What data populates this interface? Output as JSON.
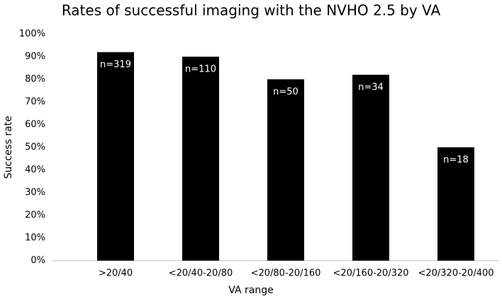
{
  "chart_data": {
    "type": "bar",
    "title": "Rates of successful imaging with the NVHO 2.5 by VA",
    "x_label": "VA range",
    "y_label": "Success rate",
    "categories": [
      ">20/40",
      "<20/40-20/80",
      "<20/80-20/160",
      "<20/160-20/320",
      "<20/320-20/400"
    ],
    "values": [
      92,
      90,
      80,
      82,
      50
    ],
    "bar_labels": [
      "n=319",
      "n=110",
      "n=50",
      "n=34",
      "n=18"
    ],
    "color": "#000000",
    "ylim": [
      0,
      100
    ],
    "yticks": [
      {
        "value": 0,
        "label": "0%"
      },
      {
        "value": 10,
        "label": "10%"
      },
      {
        "value": 20,
        "label": "20%"
      },
      {
        "value": 30,
        "label": "30%"
      },
      {
        "value": 40,
        "label": "40%"
      },
      {
        "value": 50,
        "label": "50%"
      },
      {
        "value": 60,
        "label": "60%"
      },
      {
        "value": 70,
        "label": "70%"
      },
      {
        "value": 80,
        "label": "80%"
      },
      {
        "value": 90,
        "label": "90%"
      },
      {
        "value": 100,
        "label": "100%"
      }
    ],
    "grid": false
  }
}
